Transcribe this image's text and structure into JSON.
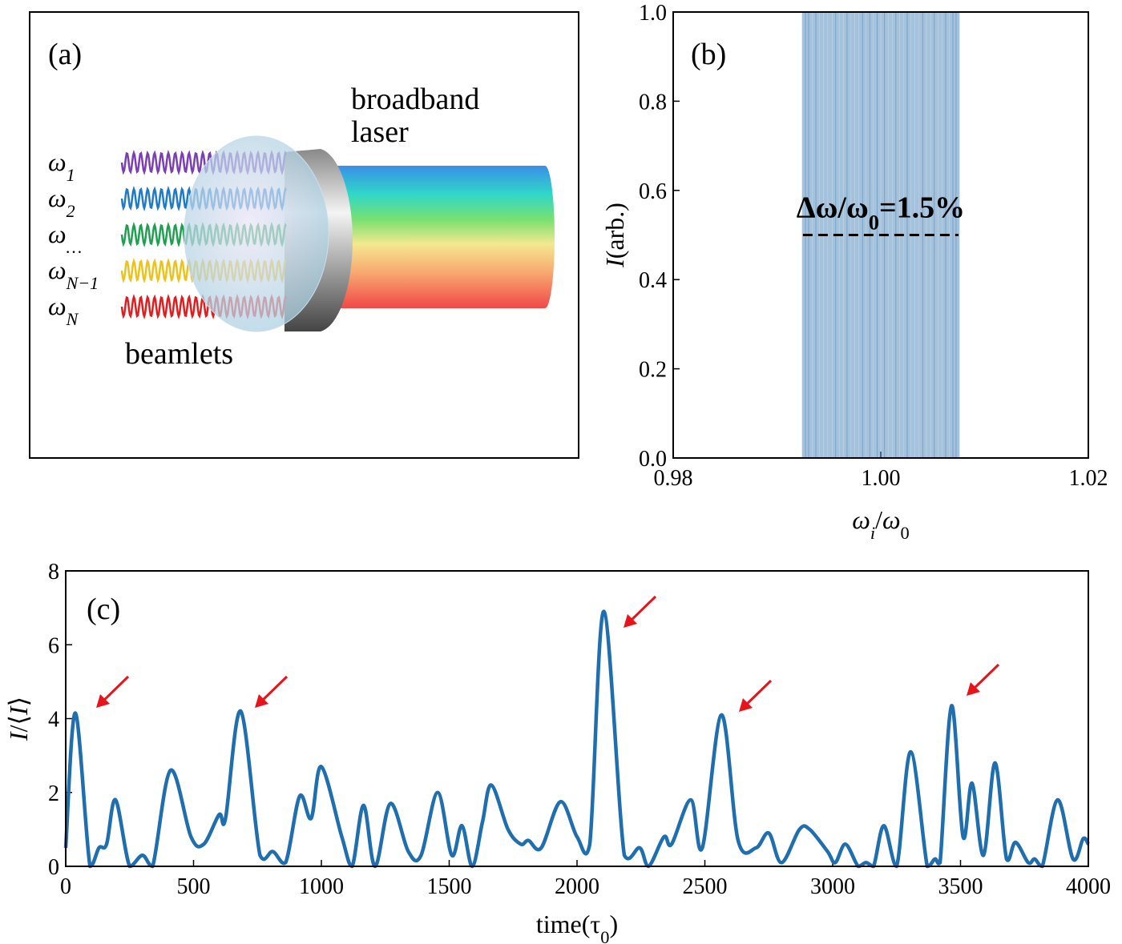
{
  "diagram": {
    "label": "(a)",
    "laser_lines": [
      "broadband",
      "laser"
    ],
    "beamlets_label": "beamlets",
    "beamlets": [
      {
        "base": "ω",
        "sub": "1",
        "color": "#7b3fb5"
      },
      {
        "base": "ω",
        "sub": "2",
        "color": "#1f7ac8"
      },
      {
        "base": "ω",
        "sub": "…",
        "color": "#1fa050"
      },
      {
        "base": "ω",
        "sub": "N−1",
        "color": "#ecc21c"
      },
      {
        "base": "ω",
        "sub": "N",
        "color": "#e01e1e"
      }
    ]
  },
  "chart_data": [
    {
      "type": "spectrum",
      "label": "(b)",
      "x": [
        0.9926,
        0.9929,
        0.9932,
        0.9936,
        0.9939,
        0.9943,
        0.9947,
        0.9951,
        0.9955,
        0.9958,
        0.9962,
        0.9966,
        0.9969,
        0.9973,
        0.9977,
        0.9981,
        0.9984,
        0.9988,
        0.9991,
        0.9995,
        0.9998,
        1.0002,
        1.0005,
        1.0009,
        1.0013,
        1.0016,
        1.002,
        1.0024,
        1.0027,
        1.0031,
        1.0035,
        1.0039,
        1.0042,
        1.0046,
        1.005,
        1.0053,
        1.0057,
        1.0061,
        1.0064,
        1.0068,
        1.0071,
        1.0074
      ],
      "values": [
        1,
        1,
        1,
        1,
        1,
        1,
        1,
        1,
        1,
        1,
        1,
        1,
        1,
        1,
        1,
        1,
        1,
        1,
        1,
        1,
        1,
        1,
        1,
        1,
        1,
        1,
        1,
        1,
        1,
        1,
        1,
        1,
        1,
        1,
        1,
        1,
        1,
        1,
        1,
        1,
        1,
        1
      ],
      "color": "#5b8fc0",
      "xlim": [
        0.98,
        1.02
      ],
      "ylim": [
        0,
        1
      ],
      "xticks": [
        0.98,
        {
          "value": 1,
          "label": "1.00"
        },
        1.02
      ],
      "yticks": [
        {
          "value": 0,
          "label": "0.0"
        },
        0.2,
        0.4,
        0.6,
        0.8,
        {
          "value": 1,
          "label": "1.0"
        }
      ],
      "ylabel": [
        {
          "t": "I",
          "i": true
        },
        {
          "t": "(arb.)"
        }
      ],
      "xlabel": [
        {
          "t": "ω",
          "i": true
        },
        {
          "t": "i",
          "i": true,
          "sub": true
        },
        {
          "t": "/"
        },
        {
          "t": "ω",
          "i": true
        },
        {
          "t": "0",
          "sub": true
        }
      ],
      "annotation": [
        {
          "t": "Δω/ω"
        },
        {
          "t": "0",
          "sub": true
        },
        {
          "t": "=1.5%"
        }
      ],
      "bandwidth": {
        "x": [
          0.9925,
          1.0075
        ],
        "y": 0.5
      }
    },
    {
      "type": "line",
      "label": "(c)",
      "x": [
        0,
        38,
        95,
        130,
        160,
        195,
        250,
        300,
        340,
        410,
        490,
        540,
        600,
        625,
        685,
        760,
        810,
        860,
        915,
        960,
        1000,
        1080,
        1120,
        1165,
        1210,
        1270,
        1340,
        1390,
        1455,
        1510,
        1550,
        1590,
        1630,
        1665,
        1730,
        1780,
        1810,
        1860,
        1935,
        2000,
        2050,
        2105,
        2185,
        2245,
        2280,
        2340,
        2370,
        2445,
        2490,
        2565,
        2630,
        2700,
        2750,
        2800,
        2870,
        2910,
        2980,
        3010,
        3050,
        3100,
        3130,
        3160,
        3200,
        3250,
        3305,
        3370,
        3400,
        3420,
        3465,
        3510,
        3545,
        3590,
        3635,
        3680,
        3715,
        3765,
        3790,
        3820,
        3880,
        3940,
        3980,
        4000
      ],
      "series": [
        {
          "color": "#1f6fb0",
          "values": [
            0.5,
            4.15,
            0,
            0.5,
            0.6,
            1.8,
            0,
            0.3,
            0,
            2.6,
            0.8,
            0.6,
            1.4,
            1.3,
            4.2,
            0.3,
            0.4,
            0.1,
            1.9,
            1.3,
            2.7,
            0.8,
            0,
            1.65,
            0,
            1.7,
            0.4,
            0.3,
            2.0,
            0.3,
            1.1,
            0,
            1.2,
            2.2,
            1.0,
            0.6,
            0.7,
            0.5,
            1.75,
            0.8,
            0.6,
            6.9,
            0.3,
            0.5,
            0,
            0.8,
            0.6,
            1.8,
            0.5,
            4.1,
            0.7,
            0.5,
            0.9,
            0.1,
            1.0,
            1.0,
            0.4,
            0.1,
            0.6,
            0,
            0.1,
            0,
            1.1,
            0,
            3.1,
            0,
            0.2,
            0.1,
            4.35,
            0.8,
            2.25,
            0.3,
            2.8,
            0.2,
            0.65,
            0.1,
            0.2,
            0,
            1.8,
            0.2,
            0.75,
            0.6
          ]
        }
      ],
      "xlim": [
        0,
        4000
      ],
      "ylim": [
        0,
        8
      ],
      "xticks": [
        0,
        500,
        1000,
        1500,
        2000,
        2500,
        3000,
        3500,
        4000
      ],
      "yticks": [
        0,
        2,
        4,
        6,
        8
      ],
      "ylabel": [
        {
          "t": "I",
          "i": true
        },
        {
          "t": "/⟨"
        },
        {
          "t": "I",
          "i": true
        },
        {
          "t": "⟩"
        }
      ],
      "xlabel": [
        {
          "t": "time(τ"
        },
        {
          "t": "0",
          "sub": true
        },
        {
          "t": ")"
        }
      ]
    }
  ]
}
